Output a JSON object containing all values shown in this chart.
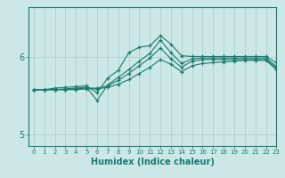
{
  "xlabel": "Humidex (Indice chaleur)",
  "ylabel": "",
  "bg_color": "#cce8e6",
  "line_color": "#1a7a6e",
  "grid_color": "#aecfcc",
  "xlim": [
    -0.5,
    23
  ],
  "ylim": [
    4.85,
    6.65
  ],
  "yticks": [
    5,
    6
  ],
  "xticks": [
    0,
    1,
    2,
    3,
    4,
    5,
    6,
    7,
    8,
    9,
    10,
    11,
    12,
    13,
    14,
    15,
    16,
    17,
    18,
    19,
    20,
    21,
    22,
    23
  ],
  "series": [
    {
      "x": [
        0,
        1,
        2,
        3,
        4,
        5,
        6,
        7,
        8,
        9,
        10,
        11,
        12,
        13,
        14,
        15,
        16,
        17,
        18,
        19,
        20,
        21,
        22,
        23
      ],
      "y": [
        5.58,
        5.58,
        5.6,
        5.61,
        5.62,
        5.63,
        5.54,
        5.73,
        5.83,
        6.06,
        6.13,
        6.15,
        6.28,
        6.17,
        6.02,
        6.01,
        6.01,
        6.01,
        6.01,
        6.01,
        6.01,
        6.01,
        6.01,
        5.93
      ]
    },
    {
      "x": [
        0,
        1,
        2,
        3,
        4,
        5,
        6,
        7,
        8,
        9,
        10,
        11,
        12,
        13,
        14,
        15,
        16,
        17,
        18,
        19,
        20,
        21,
        22,
        23
      ],
      "y": [
        5.58,
        5.58,
        5.58,
        5.59,
        5.6,
        5.61,
        5.44,
        5.64,
        5.74,
        5.84,
        5.95,
        6.05,
        6.22,
        6.06,
        5.92,
        5.98,
        5.99,
        5.99,
        5.99,
        5.99,
        5.99,
        5.99,
        5.99,
        5.88
      ]
    },
    {
      "x": [
        0,
        1,
        2,
        3,
        4,
        5,
        6,
        7,
        8,
        9,
        10,
        11,
        12,
        13,
        14,
        15,
        16,
        17,
        18,
        19,
        20,
        21,
        22,
        23
      ],
      "y": [
        5.58,
        5.58,
        5.58,
        5.58,
        5.59,
        5.6,
        5.6,
        5.63,
        5.7,
        5.79,
        5.89,
        5.99,
        6.12,
        5.98,
        5.87,
        5.95,
        5.97,
        5.97,
        5.97,
        5.97,
        5.97,
        5.97,
        5.97,
        5.86
      ]
    },
    {
      "x": [
        0,
        1,
        2,
        3,
        4,
        5,
        6,
        7,
        8,
        9,
        10,
        11,
        12,
        13,
        14,
        15,
        16,
        17,
        18,
        19,
        20,
        21,
        22,
        23
      ],
      "y": [
        5.58,
        5.58,
        5.58,
        5.58,
        5.58,
        5.59,
        5.59,
        5.61,
        5.65,
        5.71,
        5.79,
        5.87,
        5.97,
        5.91,
        5.81,
        5.89,
        5.92,
        5.93,
        5.94,
        5.95,
        5.96,
        5.96,
        5.96,
        5.84
      ]
    }
  ]
}
